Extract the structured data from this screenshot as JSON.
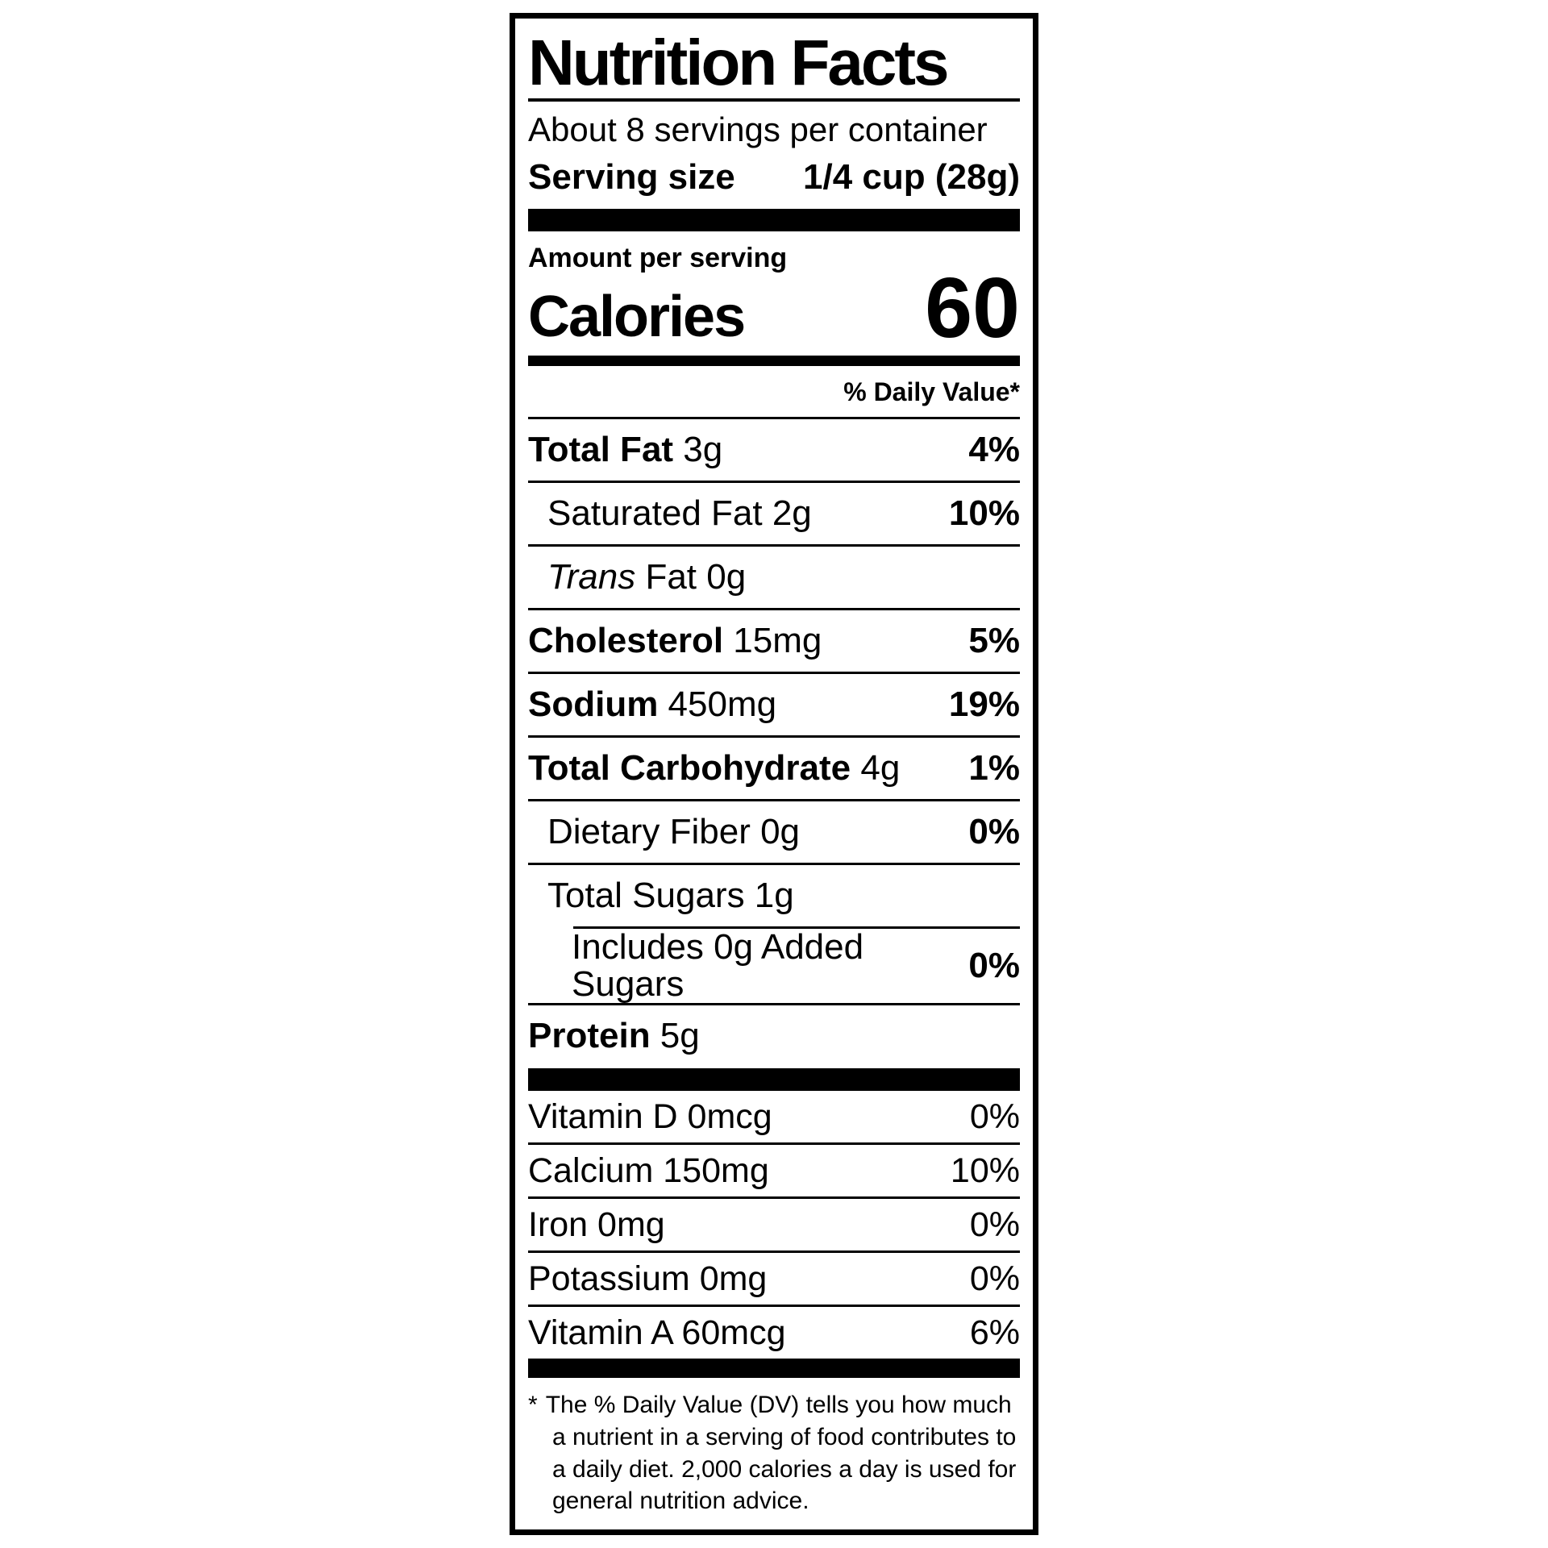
{
  "label": {
    "title": "Nutrition Facts",
    "servings_per_container": "About 8 servings per container",
    "serving_size": {
      "label": "Serving size",
      "value": "1/4 cup (28g)"
    },
    "amount_per_serving": "Amount per serving",
    "calories": {
      "label": "Calories",
      "value": "60"
    },
    "daily_value_header": "% Daily Value*",
    "nutrients": [
      {
        "lead": "Total Fat",
        "rest": " 3g",
        "dv": "4%"
      },
      {
        "rest": "Saturated Fat 2g",
        "dv": "10%"
      },
      {
        "lead": "Trans",
        "rest": " Fat 0g",
        "dv": ""
      },
      {
        "lead": "Cholesterol",
        "rest": " 15mg",
        "dv": "5%"
      },
      {
        "lead": "Sodium",
        "rest": " 450mg",
        "dv": "19%"
      },
      {
        "lead": "Total Carbohydrate",
        "rest": " 4g",
        "dv": "1%"
      },
      {
        "rest": "Dietary Fiber 0g",
        "dv": "0%"
      },
      {
        "rest": "Total Sugars 1g",
        "dv": ""
      },
      {
        "rest": "Includes 0g Added Sugars",
        "dv": "0%"
      },
      {
        "lead": "Protein",
        "rest": " 5g",
        "dv": ""
      }
    ],
    "vitamins": [
      {
        "name": "Vitamin D 0mcg",
        "dv": "0%"
      },
      {
        "name": "Calcium 150mg",
        "dv": "10%"
      },
      {
        "name": "Iron 0mg",
        "dv": "0%"
      },
      {
        "name": "Potassium 0mg",
        "dv": "0%"
      },
      {
        "name": "Vitamin A 60mcg",
        "dv": "6%"
      }
    ],
    "footnote": {
      "marker": "*",
      "text": "The % Daily Value (DV) tells you how much a nutrient in a serving of food contributes to a daily diet. 2,000 calories a day is used for general nutrition advice."
    },
    "colors": {
      "ink": "#000000",
      "background": "#ffffff"
    }
  }
}
